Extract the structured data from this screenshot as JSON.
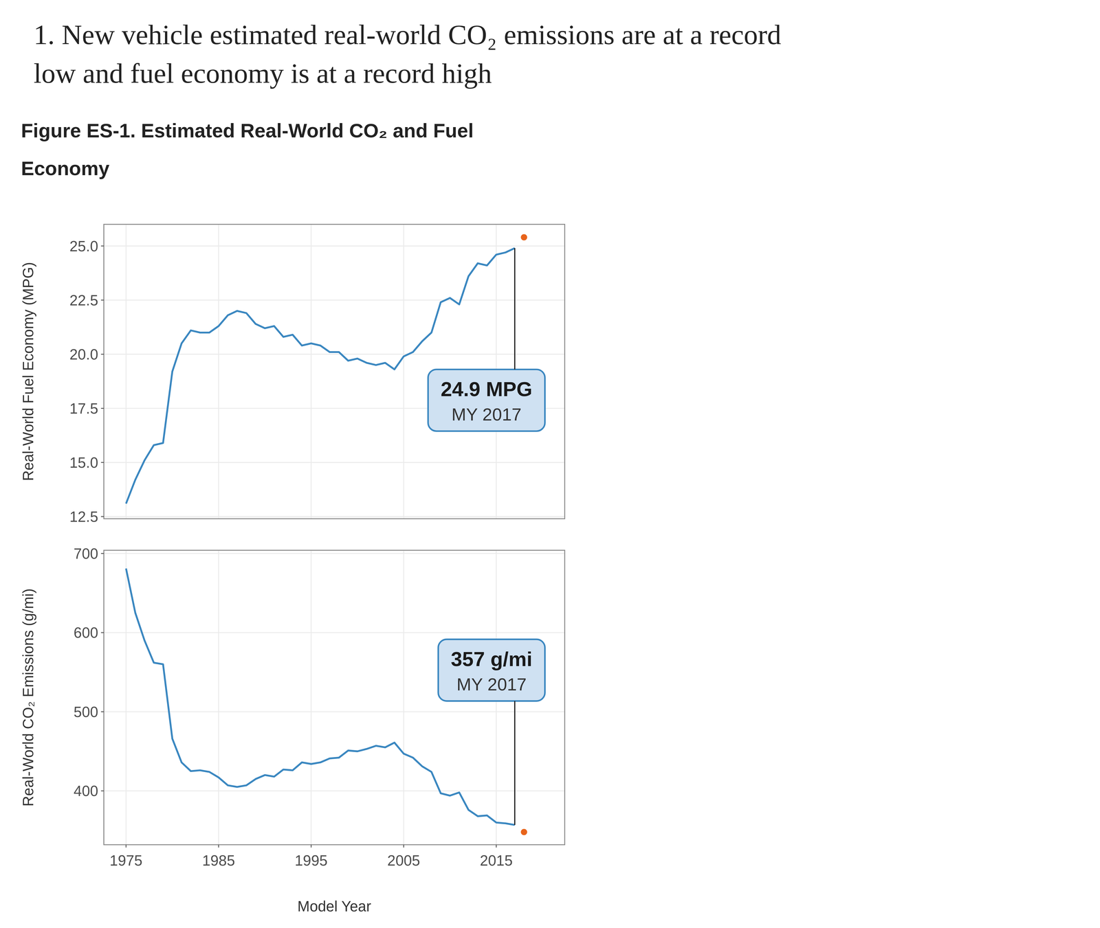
{
  "header": {
    "title": [
      "1. New vehicle estimated real-world CO₂ emissions are at a record",
      "low and fuel economy is at a record high"
    ],
    "figure_title": [
      "Figure ES-1. Estimated Real-World CO₂ and Fuel",
      "Economy"
    ]
  },
  "chart_data": [
    {
      "type": "line",
      "y_label": "Real-World Fuel Economy (MPG)",
      "x": [
        1975,
        1976,
        1977,
        1978,
        1979,
        1980,
        1981,
        1982,
        1983,
        1984,
        1985,
        1986,
        1987,
        1988,
        1989,
        1990,
        1991,
        1992,
        1993,
        1994,
        1995,
        1996,
        1997,
        1998,
        1999,
        2000,
        2001,
        2002,
        2003,
        2004,
        2005,
        2006,
        2007,
        2008,
        2009,
        2010,
        2011,
        2012,
        2013,
        2014,
        2015,
        2016,
        2017,
        2018
      ],
      "series": [
        {
          "color": "#3a87c0",
          "values": [
            13.1,
            14.2,
            15.1,
            15.8,
            15.9,
            19.2,
            20.5,
            21.1,
            21.0,
            21.0,
            21.3,
            21.8,
            22.0,
            21.9,
            21.4,
            21.2,
            21.3,
            20.8,
            20.9,
            20.4,
            20.5,
            20.4,
            20.1,
            20.1,
            19.7,
            19.8,
            19.6,
            19.5,
            19.6,
            19.3,
            19.9,
            20.1,
            20.6,
            21.0,
            22.4,
            22.6,
            22.3,
            23.6,
            24.2,
            24.1,
            24.6,
            24.7,
            24.9,
            null
          ]
        },
        {
          "type": "scatter",
          "marker": "circle",
          "color": "#e8641b",
          "values": [
            null,
            null,
            null,
            null,
            null,
            null,
            null,
            null,
            null,
            null,
            null,
            null,
            null,
            null,
            null,
            null,
            null,
            null,
            null,
            null,
            null,
            null,
            null,
            null,
            null,
            null,
            null,
            null,
            null,
            null,
            null,
            null,
            null,
            null,
            null,
            null,
            null,
            null,
            null,
            null,
            null,
            null,
            null,
            25.4
          ]
        }
      ],
      "xlim": [
        1972.6,
        2022.4
      ],
      "xticks": [
        1975,
        1985,
        1995,
        2005,
        2015
      ],
      "ylim": [
        12.4,
        26.0
      ],
      "yticks": [
        {
          "value": 12.5,
          "label": "12.5"
        },
        {
          "value": 15,
          "label": "15.0"
        },
        {
          "value": 17.5,
          "label": "17.5"
        },
        {
          "value": 20,
          "label": "20.0"
        },
        {
          "value": 22.5,
          "label": "22.5"
        },
        {
          "value": 25,
          "label": "25.0"
        }
      ],
      "grid": true,
      "tick_labels": "y",
      "annotations": [
        {
          "text": "24.9 MPG",
          "subtext": "MY 2017",
          "x": 2017,
          "y": 24.9
        }
      ]
    },
    {
      "type": "line",
      "y_label": "Real-World CO₂ Emissions (g/mi)",
      "x_label": "Model Year",
      "x": [
        1975,
        1976,
        1977,
        1978,
        1979,
        1980,
        1981,
        1982,
        1983,
        1984,
        1985,
        1986,
        1987,
        1988,
        1989,
        1990,
        1991,
        1992,
        1993,
        1994,
        1995,
        1996,
        1997,
        1998,
        1999,
        2000,
        2001,
        2002,
        2003,
        2004,
        2005,
        2006,
        2007,
        2008,
        2009,
        2010,
        2011,
        2012,
        2013,
        2014,
        2015,
        2016,
        2017,
        2018
      ],
      "series": [
        {
          "color": "#3a87c0",
          "values": [
            681,
            625,
            590,
            562,
            560,
            466,
            436,
            425,
            426,
            424,
            417,
            407,
            405,
            407,
            415,
            420,
            418,
            427,
            426,
            436,
            434,
            436,
            441,
            442,
            451,
            450,
            453,
            457,
            455,
            461,
            447,
            442,
            431,
            424,
            397,
            394,
            398,
            376,
            368,
            369,
            360,
            359,
            357,
            null
          ]
        },
        {
          "type": "scatter",
          "marker": "circle",
          "color": "#e8641b",
          "values": [
            null,
            null,
            null,
            null,
            null,
            null,
            null,
            null,
            null,
            null,
            null,
            null,
            null,
            null,
            null,
            null,
            null,
            null,
            null,
            null,
            null,
            null,
            null,
            null,
            null,
            null,
            null,
            null,
            null,
            null,
            null,
            null,
            null,
            null,
            null,
            null,
            null,
            null,
            null,
            null,
            null,
            null,
            null,
            348
          ]
        }
      ],
      "xlim": [
        1972.6,
        2022.4
      ],
      "xticks": [
        1975,
        1985,
        1995,
        2005,
        2015
      ],
      "ylim": [
        332,
        704
      ],
      "yticks": [
        400,
        500,
        600,
        700
      ],
      "grid": true,
      "annotations": [
        {
          "text": "357 g/mi",
          "subtext": "MY 2017",
          "x": 2017,
          "y": 357
        }
      ]
    }
  ]
}
